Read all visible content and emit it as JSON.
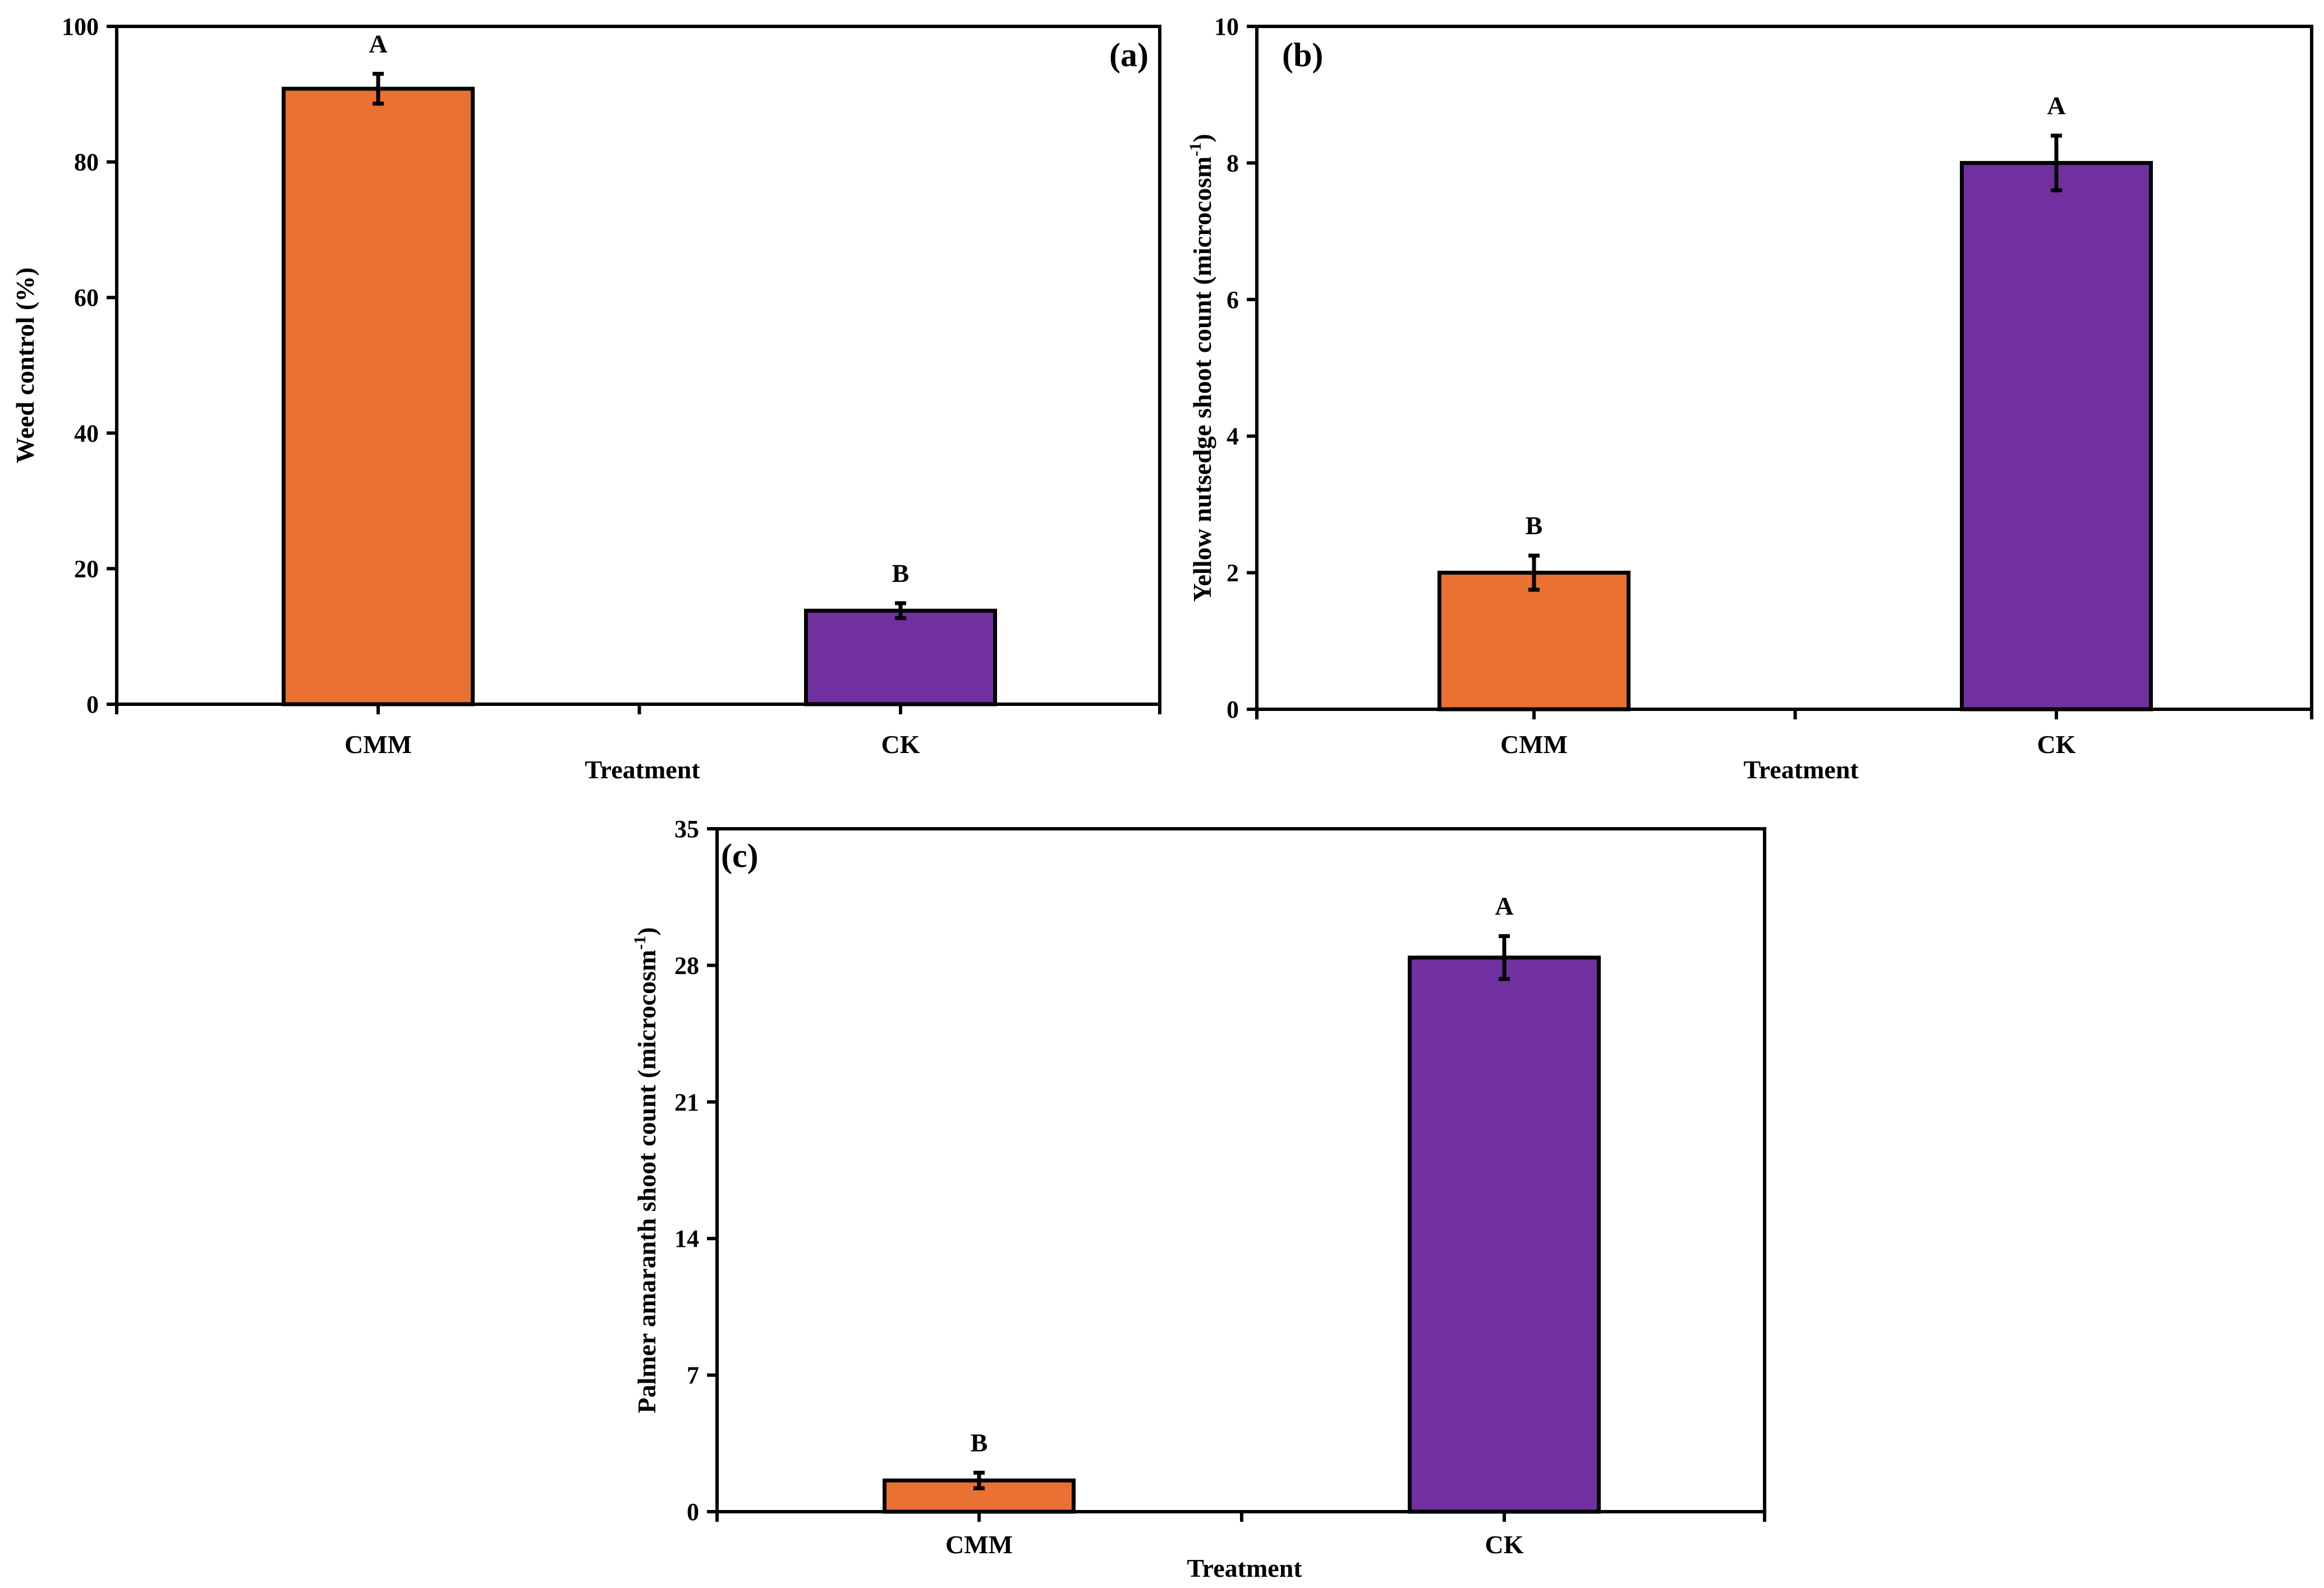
{
  "colors": {
    "cmm": "#E97132",
    "ck": "#7030A0",
    "axis": "#000000"
  },
  "chart_data": [
    {
      "type": "bar",
      "panel_label": "(a)",
      "categories": [
        "CMM",
        "CK"
      ],
      "values": [
        90.8,
        13.8
      ],
      "errors": [
        2.2,
        1.1
      ],
      "significance": [
        "A",
        "B"
      ],
      "xlabel": "Treatment",
      "ylabel": "Weed control (%)",
      "ylim": [
        0,
        100
      ],
      "yticks": [
        "0",
        "20",
        "40",
        "60",
        "80",
        "100"
      ]
    },
    {
      "type": "bar",
      "panel_label": "(b)",
      "categories": [
        "CMM",
        "CK"
      ],
      "values": [
        2.0,
        8.0
      ],
      "errors": [
        0.25,
        0.4
      ],
      "significance": [
        "B",
        "A"
      ],
      "xlabel": "Treatment",
      "ylabel": "Yellow nutsedge shoot count (microcosm",
      "ylabel_sup": "-1",
      "ylabel_end": ")",
      "ylim": [
        0,
        10
      ],
      "yticks": [
        "0",
        "2",
        "4",
        "6",
        "8",
        "10"
      ]
    },
    {
      "type": "bar",
      "panel_label": "(c)",
      "categories": [
        "CMM",
        "CK"
      ],
      "values": [
        1.6,
        28.4
      ],
      "errors": [
        0.4,
        1.1
      ],
      "significance": [
        "B",
        "A"
      ],
      "xlabel": "Treatment",
      "ylabel": "Palmer amaranth shoot count (microcosm",
      "ylabel_sup": "-1",
      "ylabel_end": ")",
      "ylim": [
        0,
        35
      ],
      "yticks": [
        "0",
        "7",
        "14",
        "21",
        "28",
        "35"
      ]
    }
  ]
}
